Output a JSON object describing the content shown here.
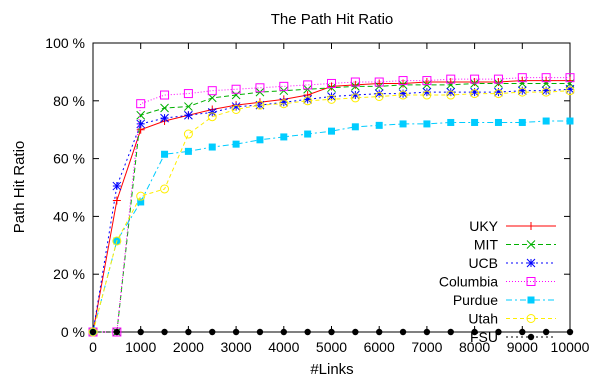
{
  "chart_data": {
    "type": "line",
    "title": "The Path Hit Ratio",
    "xlabel": "#Links",
    "ylabel": "Path Hit Ratio",
    "xlim": [
      0,
      10000
    ],
    "ylim": [
      0,
      100
    ],
    "xticks": [
      0,
      1000,
      2000,
      3000,
      4000,
      5000,
      6000,
      7000,
      8000,
      9000,
      10000
    ],
    "yticks": [
      {
        "value": 0,
        "label": "0 %"
      },
      {
        "value": 20,
        "label": "20 %"
      },
      {
        "value": 40,
        "label": "40 %"
      },
      {
        "value": 60,
        "label": "60 %"
      },
      {
        "value": 80,
        "label": "80 %"
      },
      {
        "value": 100,
        "label": "100 %"
      }
    ],
    "grid": false,
    "legend_position": "bottom-right",
    "series": [
      {
        "name": "UKY",
        "color": "#ff0000",
        "dash": "",
        "marker": "plus",
        "x": [
          0,
          500,
          1000,
          1500,
          2000,
          2500,
          3000,
          3500,
          4000,
          4500,
          5000,
          5500,
          6000,
          6500,
          7000,
          7500,
          8000,
          8500,
          9000,
          9500,
          10000
        ],
        "y": [
          0,
          45.5,
          70,
          73,
          75,
          77,
          78.5,
          79.5,
          80.5,
          82,
          85,
          85.5,
          86,
          86,
          86.5,
          86.5,
          86.5,
          86.5,
          87,
          87,
          87
        ]
      },
      {
        "name": "MIT",
        "color": "#00b000",
        "dash": "5,3",
        "marker": "x",
        "x": [
          0,
          500,
          1000,
          1500,
          2000,
          2500,
          3000,
          3500,
          4000,
          4500,
          5000,
          5500,
          6000,
          6500,
          7000,
          7500,
          8000,
          8500,
          9000,
          9500,
          10000
        ],
        "y": [
          0,
          0,
          75,
          77.5,
          78,
          81,
          82,
          83,
          83.5,
          84,
          84.5,
          85,
          85,
          85.5,
          85.5,
          85.5,
          86,
          86,
          86,
          86,
          86
        ]
      },
      {
        "name": "UCB",
        "color": "#0000ff",
        "dash": "2,3",
        "marker": "star",
        "x": [
          0,
          500,
          1000,
          1500,
          2000,
          2500,
          3000,
          3500,
          4000,
          4500,
          5000,
          5500,
          6000,
          6500,
          7000,
          7500,
          8000,
          8500,
          9000,
          9500,
          10000
        ],
        "y": [
          0,
          50.5,
          72,
          74,
          75,
          76,
          78,
          78.5,
          79.5,
          80.5,
          81.5,
          82,
          82.5,
          82.5,
          83,
          83,
          83,
          83,
          83.5,
          83.5,
          84
        ]
      },
      {
        "name": "Columbia",
        "color": "#ff00ff",
        "dash": "1,2",
        "marker": "square",
        "x": [
          0,
          500,
          1000,
          1500,
          2000,
          2500,
          3000,
          3500,
          4000,
          4500,
          5000,
          5500,
          6000,
          6500,
          7000,
          7500,
          8000,
          8500,
          9000,
          9500,
          10000
        ],
        "y": [
          0,
          0,
          79,
          82,
          82.5,
          83.5,
          84,
          84.5,
          85,
          85.5,
          86,
          86.5,
          86.5,
          87,
          87,
          87.5,
          87.5,
          87.5,
          88,
          88,
          88
        ]
      },
      {
        "name": "Purdue",
        "color": "#00ccff",
        "dash": "6,3,2,3",
        "marker": "filled-square",
        "x": [
          0,
          500,
          1000,
          1500,
          2000,
          2500,
          3000,
          3500,
          4000,
          4500,
          5000,
          5500,
          6000,
          6500,
          7000,
          7500,
          8000,
          8500,
          9000,
          9500,
          10000
        ],
        "y": [
          0,
          31.5,
          45,
          61.5,
          62.5,
          64,
          65,
          66.5,
          67.5,
          68.5,
          69.5,
          71,
          71.5,
          72,
          72,
          72.5,
          72.5,
          72.5,
          72.5,
          73,
          73
        ]
      },
      {
        "name": "Utah",
        "color": "#ffee00",
        "dash": "4,3",
        "marker": "circle",
        "x": [
          0,
          500,
          1000,
          1500,
          2000,
          2500,
          3000,
          3500,
          4000,
          4500,
          5000,
          5500,
          6000,
          6500,
          7000,
          7500,
          8000,
          8500,
          9000,
          9500,
          10000
        ],
        "y": [
          0,
          31.5,
          47,
          49.5,
          68.5,
          74.5,
          77,
          78.5,
          79,
          80,
          80.5,
          81,
          81.5,
          82,
          82,
          82,
          82.5,
          82.5,
          83,
          83,
          83.5
        ]
      },
      {
        "name": "FSU",
        "color": "#000000",
        "dash": "2,3",
        "marker": "dot",
        "x": [
          0,
          500,
          1000,
          1500,
          2000,
          2500,
          3000,
          3500,
          4000,
          4500,
          5000,
          5500,
          6000,
          6500,
          7000,
          7500,
          8000,
          8500,
          9000,
          9500,
          10000
        ],
        "y": [
          0,
          0,
          0,
          0,
          0,
          0,
          0,
          0,
          0,
          0,
          0,
          0,
          0,
          0,
          0,
          0,
          0,
          0,
          0,
          0,
          0
        ]
      }
    ]
  }
}
